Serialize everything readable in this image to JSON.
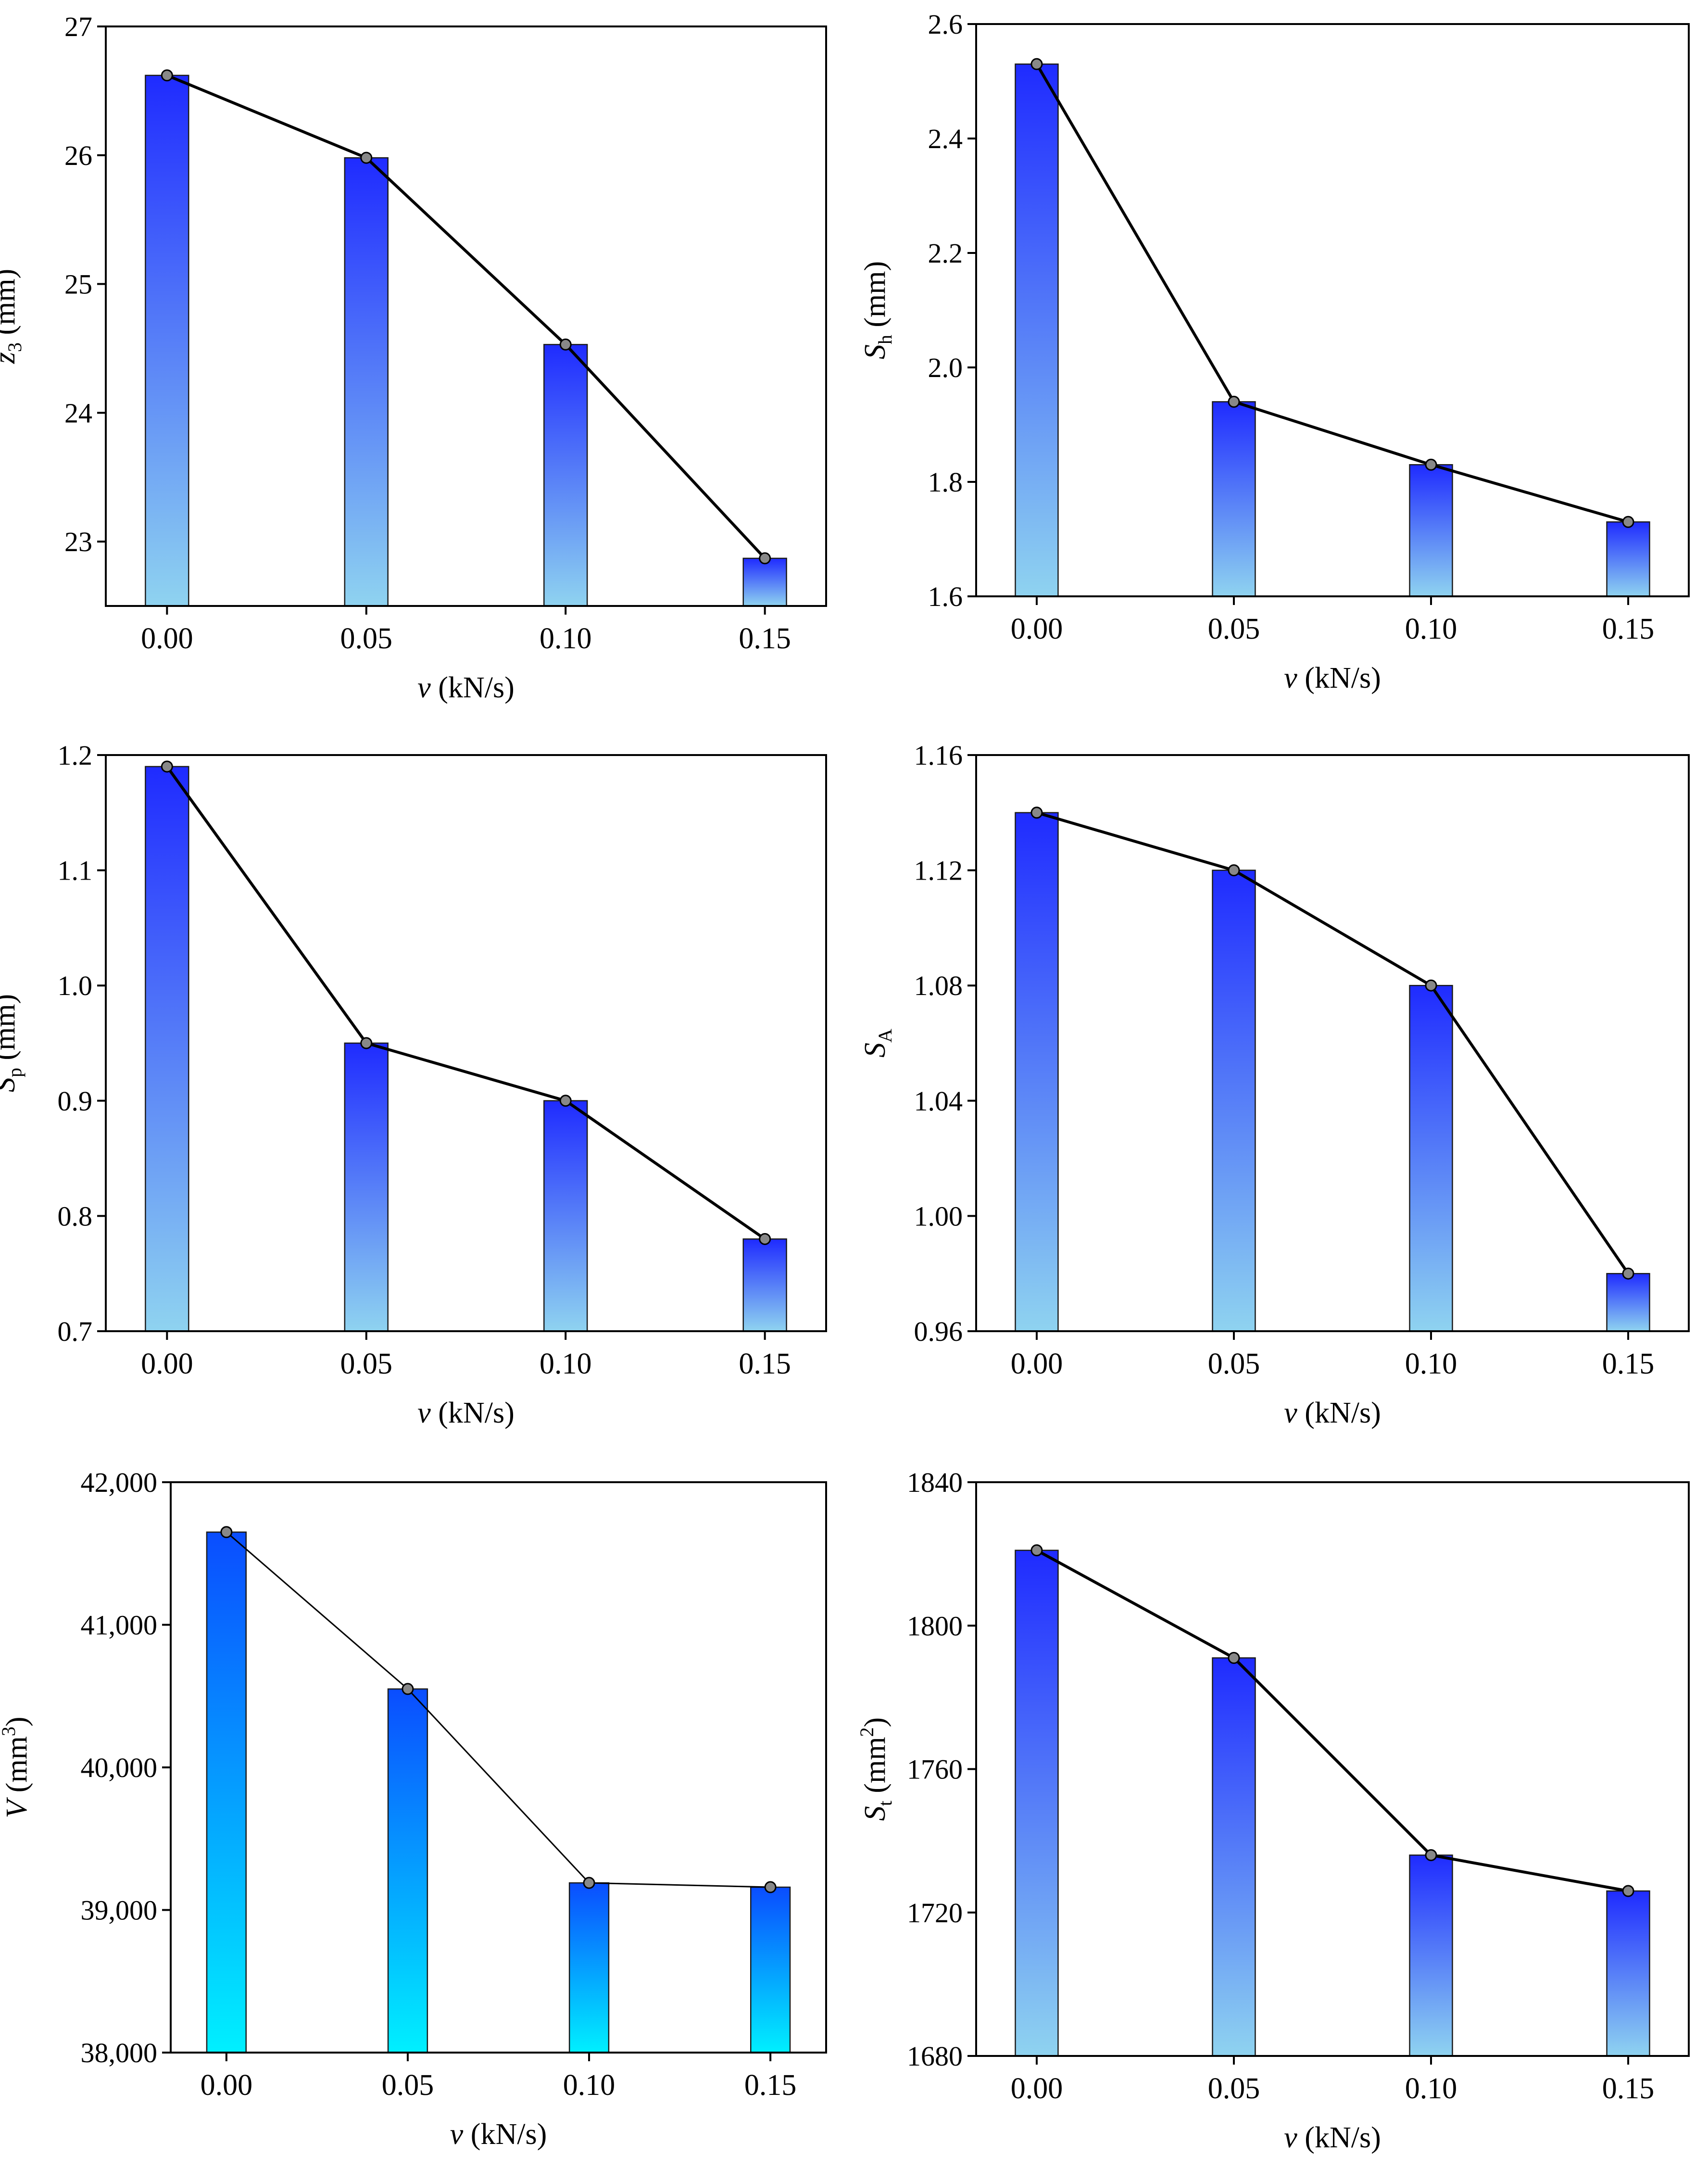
{
  "chart_data": [
    {
      "type": "bar",
      "categories": [
        "0.00",
        "0.05",
        "0.10",
        "0.15"
      ],
      "values": [
        26.62,
        25.98,
        24.53,
        22.87
      ],
      "xlabel_var": "v",
      "xlabel_unit": " (kN/s)",
      "ylabel_var": "z",
      "ylabel_sub": "3",
      "ylabel_sup": "",
      "ylabel_unit": " (mm)",
      "ylim": [
        22.5,
        27
      ],
      "yticks": [
        "23",
        "24",
        "25",
        "26",
        "27"
      ],
      "ytick_values": [
        23,
        24,
        25,
        26,
        27
      ],
      "overlay_line": true,
      "grid": false,
      "gradient": [
        "#1f2bff",
        "#8fd3f0"
      ]
    },
    {
      "type": "bar",
      "categories": [
        "0.00",
        "0.05",
        "0.10",
        "0.15"
      ],
      "values": [
        2.53,
        1.94,
        1.83,
        1.73
      ],
      "xlabel_var": "v",
      "xlabel_unit": " (kN/s)",
      "ylabel_var": "S",
      "ylabel_sub": "h",
      "ylabel_sup": "",
      "ylabel_unit": " (mm)",
      "ylim": [
        1.6,
        2.6
      ],
      "yticks": [
        "1.6",
        "1.8",
        "2.0",
        "2.2",
        "2.4",
        "2.6"
      ],
      "ytick_values": [
        1.6,
        1.8,
        2.0,
        2.2,
        2.4,
        2.6
      ],
      "overlay_line": true,
      "grid": false,
      "gradient": [
        "#1f2bff",
        "#8fd3f0"
      ]
    },
    {
      "type": "bar",
      "categories": [
        "0.00",
        "0.05",
        "0.10",
        "0.15"
      ],
      "values": [
        1.19,
        0.95,
        0.9,
        0.78
      ],
      "xlabel_var": "v",
      "xlabel_unit": " (kN/s)",
      "ylabel_var": "S",
      "ylabel_sub": "p",
      "ylabel_sup": "",
      "ylabel_unit": " (mm)",
      "ylim": [
        0.7,
        1.2
      ],
      "yticks": [
        "0.7",
        "0.8",
        "0.9",
        "1.0",
        "1.1",
        "1.2"
      ],
      "ytick_values": [
        0.7,
        0.8,
        0.9,
        1.0,
        1.1,
        1.2
      ],
      "overlay_line": true,
      "grid": false,
      "gradient": [
        "#1f2bff",
        "#8fd3f0"
      ]
    },
    {
      "type": "bar",
      "categories": [
        "0.00",
        "0.05",
        "0.10",
        "0.15"
      ],
      "values": [
        1.14,
        1.12,
        1.08,
        0.98
      ],
      "xlabel_var": "v",
      "xlabel_unit": " (kN/s)",
      "ylabel_var": "S",
      "ylabel_sub": "A",
      "ylabel_sup": "",
      "ylabel_unit": "",
      "ylim": [
        0.96,
        1.16
      ],
      "yticks": [
        "0.96",
        "1.00",
        "1.04",
        "1.08",
        "1.12",
        "1.16"
      ],
      "ytick_values": [
        0.96,
        1.0,
        1.04,
        1.08,
        1.12,
        1.16
      ],
      "overlay_line": true,
      "grid": false,
      "gradient": [
        "#1f2bff",
        "#8fd3f0"
      ]
    },
    {
      "type": "bar",
      "categories": [
        "0.00",
        "0.05",
        "0.10",
        "0.15"
      ],
      "values": [
        41650,
        40550,
        39190,
        39160
      ],
      "xlabel_var": "v",
      "xlabel_unit": " (kN/s)",
      "ylabel_var": "V",
      "ylabel_sub": "",
      "ylabel_sup": "3",
      "ylabel_unit": " (mm",
      "ylabel_close": ")",
      "ylim": [
        38000,
        42000
      ],
      "yticks": [
        "38,000",
        "39,000",
        "40,000",
        "41,000",
        "42,000"
      ],
      "ytick_values": [
        38000,
        39000,
        40000,
        41000,
        42000
      ],
      "overlay_line": true,
      "grid": false,
      "gradient": [
        "#0a4dff",
        "#00f0ff"
      ]
    },
    {
      "type": "bar",
      "categories": [
        "0.00",
        "0.05",
        "0.10",
        "0.15"
      ],
      "values": [
        1821,
        1791,
        1736,
        1726
      ],
      "xlabel_var": "v",
      "xlabel_unit": " (kN/s)",
      "ylabel_var": "S",
      "ylabel_sub": "t",
      "ylabel_sup": "2",
      "ylabel_unit": " (mm",
      "ylabel_close": ")",
      "ylim": [
        1680,
        1840
      ],
      "yticks": [
        "1680",
        "1720",
        "1760",
        "1800",
        "1840"
      ],
      "ytick_values": [
        1680,
        1720,
        1760,
        1800,
        1840
      ],
      "overlay_line": true,
      "grid": false,
      "gradient": [
        "#1f2bff",
        "#8fd3f0"
      ]
    }
  ]
}
